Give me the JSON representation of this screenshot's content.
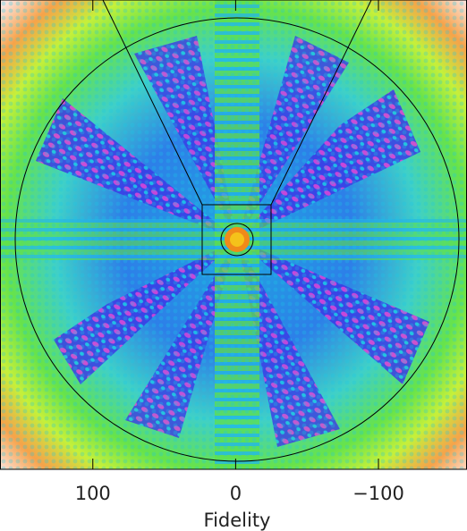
{
  "chart_data": {
    "type": "image",
    "xlabel": "Fidelity",
    "xlim": [
      165,
      -162
    ],
    "xticks": [
      100,
      0,
      {
        "value": -100,
        "label": "−100"
      }
    ]
  }
}
